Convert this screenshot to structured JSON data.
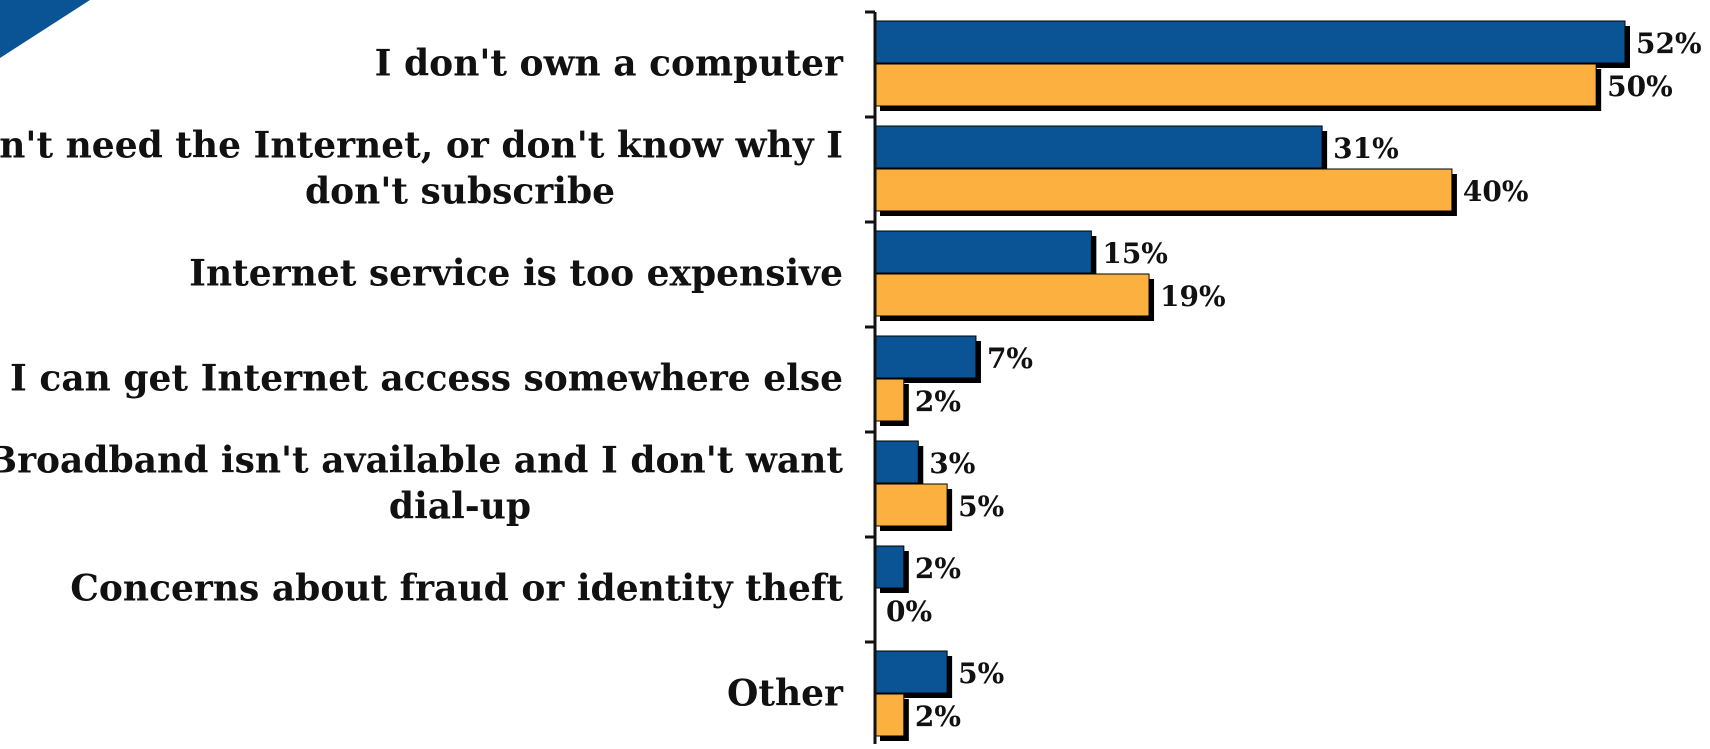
{
  "colors": {
    "series1": "#0a5496",
    "series2": "#fbb040",
    "shadow": "#000000",
    "axis": "#111111",
    "corner_accent": "#0a5496"
  },
  "chart_data": {
    "type": "bar",
    "orientation": "horizontal",
    "categories": [
      [
        "I don't own a computer"
      ],
      [
        "I don't need the Internet, or don't know why I",
        "don't subscribe"
      ],
      [
        "Internet service is too expensive"
      ],
      [
        "I can get Internet access somewhere else"
      ],
      [
        "Broadband isn't available and I don't want",
        "dial-up"
      ],
      [
        "Concerns about fraud or identity theft"
      ],
      [
        "Other"
      ]
    ],
    "series": [
      {
        "values": [
          52,
          31,
          15,
          7,
          3,
          2,
          5
        ],
        "labels": [
          "52%",
          "31%",
          "15%",
          "7%",
          "3%",
          "2%",
          "5%"
        ]
      },
      {
        "values": [
          50,
          40,
          19,
          2,
          5,
          0,
          2
        ],
        "labels": [
          "50%",
          "40%",
          "19%",
          "2%",
          "5%",
          "0%",
          "2%"
        ]
      }
    ],
    "xlim": [
      0,
      52
    ],
    "legend": "none",
    "grid": false
  }
}
